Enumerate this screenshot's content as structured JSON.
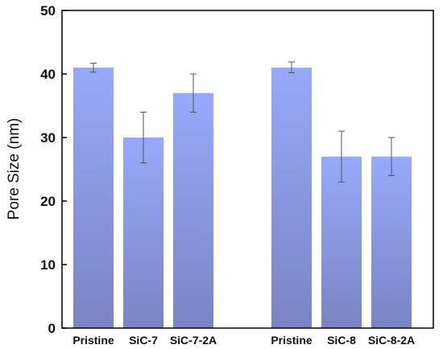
{
  "chart_data": {
    "type": "bar",
    "title": "",
    "xlabel": "",
    "ylabel": "Pore Size (nm)",
    "ylim": [
      0,
      50
    ],
    "yticks": [
      0,
      10,
      20,
      30,
      40,
      50
    ],
    "grid": false,
    "groups": [
      {
        "categories": [
          "Pristine",
          "SiC-7",
          "SiC-7-2A"
        ],
        "values": [
          41,
          30,
          37
        ],
        "error_low": [
          40.3,
          26,
          34
        ],
        "error_high": [
          41.7,
          34,
          40
        ]
      },
      {
        "categories": [
          "Pristine",
          "SiC-8",
          "SiC-8-2A"
        ],
        "values": [
          41,
          27,
          27
        ],
        "error_low": [
          40.2,
          23,
          24
        ],
        "error_high": [
          41.9,
          31,
          30
        ]
      }
    ],
    "bar_color_top": "#97a9fb",
    "bar_color_bottom": "#7a84c4"
  }
}
